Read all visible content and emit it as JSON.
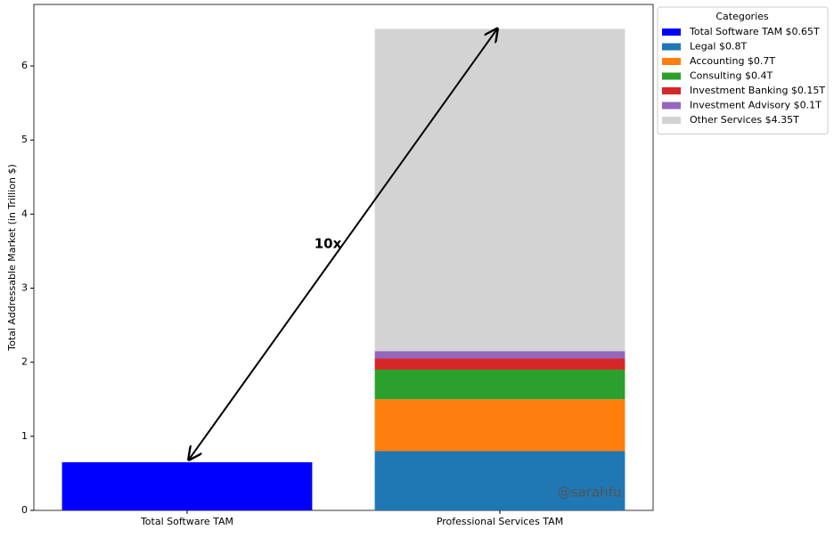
{
  "chart_data": {
    "type": "stacked_bar",
    "ylabel": "Total Addressable Market (in Trillion $)",
    "categories": [
      "Total Software TAM",
      "Professional Services TAM"
    ],
    "series": [
      {
        "name": "Total Software TAM $0.65T",
        "color": "#0000ff",
        "values": [
          0.65,
          null
        ]
      },
      {
        "name": "Legal $0.8T",
        "color": "#1f77b4",
        "values": [
          null,
          0.8
        ]
      },
      {
        "name": "Accounting $0.7T",
        "color": "#ff7f0e",
        "values": [
          null,
          0.7
        ]
      },
      {
        "name": "Consulting $0.4T",
        "color": "#2ca02c",
        "values": [
          null,
          0.4
        ]
      },
      {
        "name": "Investment Banking $0.15T",
        "color": "#d62728",
        "values": [
          null,
          0.15
        ]
      },
      {
        "name": "Investment Advisory $0.1T",
        "color": "#9467bd",
        "values": [
          null,
          0.1
        ]
      },
      {
        "name": "Other Services $4.35T",
        "color": "#d3d3d3",
        "values": [
          null,
          4.35
        ]
      }
    ],
    "ylim": [
      0,
      6.83
    ],
    "yticks": [
      0,
      1,
      2,
      3,
      4,
      5,
      6
    ],
    "legend_title": "Categories",
    "legend_position": "outside-upper-right",
    "annotation": "10x",
    "watermark": "@sarahfu"
  }
}
